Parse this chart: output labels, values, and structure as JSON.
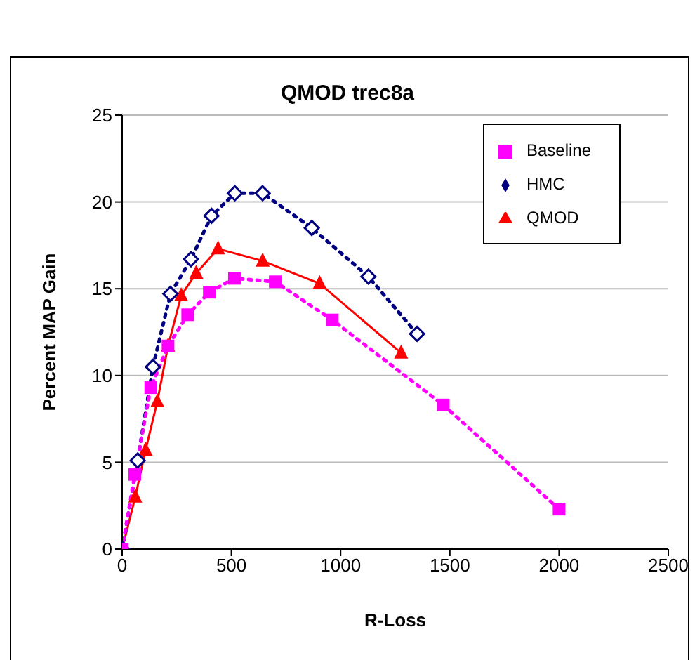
{
  "chart_data": {
    "type": "line",
    "title": "QMOD trec8a",
    "xlabel": "R-Loss",
    "ylabel": "Percent MAP Gain",
    "xlim": [
      0,
      2500
    ],
    "xticks": [
      0,
      500,
      1000,
      1500,
      2000,
      2500
    ],
    "ylim": [
      0,
      25
    ],
    "yticks": [
      0,
      5,
      10,
      15,
      20,
      25
    ],
    "grid": "y",
    "legend": "top right",
    "series": [
      {
        "name": "QMOD",
        "color": "#ff0000",
        "marker": "triangle",
        "line_style": "solid",
        "x": [
          0,
          60,
          107,
          161,
          210,
          270,
          339,
          439,
          643,
          904,
          1277
        ],
        "values": [
          0,
          3.0,
          5.7,
          8.5,
          11.7,
          14.6,
          15.9,
          17.3,
          16.6,
          15.3,
          11.3
        ]
      },
      {
        "name": "HMC",
        "color": "#000080",
        "marker": "diamond",
        "line_style": "dotted",
        "x": [
          0,
          71,
          141,
          221,
          315,
          409,
          516,
          643,
          868,
          1127,
          1350
        ],
        "values": [
          0,
          5.1,
          10.5,
          14.7,
          16.7,
          19.2,
          20.5,
          20.5,
          18.5,
          15.7,
          12.4
        ]
      },
      {
        "name": "Baseline",
        "color": "#ff00ff",
        "marker": "square",
        "line_style": "dotted",
        "x": [
          0,
          58,
          131,
          210,
          300,
          399,
          514,
          701,
          962,
          1470,
          2000
        ],
        "values": [
          0,
          4.3,
          9.3,
          11.7,
          13.5,
          14.8,
          15.6,
          15.4,
          13.2,
          8.3,
          2.3
        ]
      }
    ]
  }
}
